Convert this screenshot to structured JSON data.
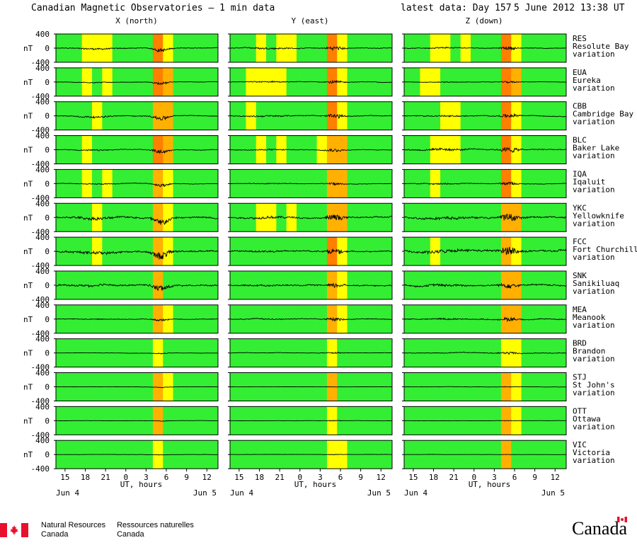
{
  "header": {
    "title": "Canadian Magnetic Observatories — 1 min data",
    "latest": "latest data: Day 157",
    "date": "5 June 2012 13:38 UT"
  },
  "colors": {
    "quiet": "#33ee33",
    "active": "#ffff00",
    "storm": "#ffb000",
    "major": "#ff7f00",
    "trace": "#000000"
  },
  "footer": {
    "dept_en_1": "Natural Resources",
    "dept_en_2": "Canada",
    "dept_fr_1": "Ressources naturelles",
    "dept_fr_2": "Canada",
    "wordmark": "Canada"
  },
  "chart_data": {
    "type": "line",
    "columns": [
      "X (north)",
      "Y (east)",
      "Z (down)"
    ],
    "ylabel": "nT",
    "y_ticks": [
      "400",
      "0",
      "-400"
    ],
    "ylim": [
      -400,
      400
    ],
    "x_tick_labels": [
      "15",
      "18",
      "21",
      "0",
      "3",
      "6",
      "9",
      "12"
    ],
    "x_tick_hours": [
      15,
      18,
      21,
      24,
      27,
      30,
      33,
      36
    ],
    "xlabel": "UT, hours",
    "xlim_hours": [
      13.65,
      37.65
    ],
    "date_start": "Jun 4",
    "date_end": "Jun 5",
    "stations": [
      {
        "code": "RES",
        "name": "Resolute Bay",
        "label": "variation",
        "amp": [
          90,
          100,
          80
        ]
      },
      {
        "code": "EUA",
        "name": "Eureka",
        "label": "variation",
        "amp": [
          60,
          80,
          50
        ]
      },
      {
        "code": "CBB",
        "name": "Cambridge Bay",
        "label": "variation",
        "amp": [
          110,
          110,
          100
        ]
      },
      {
        "code": "BLC",
        "name": "Baker Lake",
        "label": "variation",
        "amp": [
          90,
          90,
          160
        ]
      },
      {
        "code": "IQA",
        "name": "Iqaluit",
        "label": "variation",
        "amp": [
          80,
          70,
          90
        ]
      },
      {
        "code": "YKC",
        "name": "Yellowknife",
        "label": "variation",
        "amp": [
          230,
          190,
          240
        ]
      },
      {
        "code": "FCC",
        "name": "Fort Churchill",
        "label": "variation",
        "amp": [
          240,
          160,
          280
        ]
      },
      {
        "code": "SNK",
        "name": "Sanikiluaq",
        "label": "variation",
        "amp": [
          210,
          150,
          200
        ]
      },
      {
        "code": "MEA",
        "name": "Meanook",
        "label": "variation",
        "amp": [
          80,
          110,
          140
        ]
      },
      {
        "code": "BRD",
        "name": "Brandon",
        "label": "variation",
        "amp": [
          40,
          60,
          100
        ]
      },
      {
        "code": "STJ",
        "name": "St John's",
        "label": "variation",
        "amp": [
          30,
          20,
          40
        ]
      },
      {
        "code": "OTT",
        "name": "Ottawa",
        "label": "variation",
        "amp": [
          30,
          40,
          30
        ]
      },
      {
        "code": "VIC",
        "name": "Victoria",
        "label": "variation",
        "amp": [
          30,
          30,
          20
        ]
      }
    ]
  }
}
